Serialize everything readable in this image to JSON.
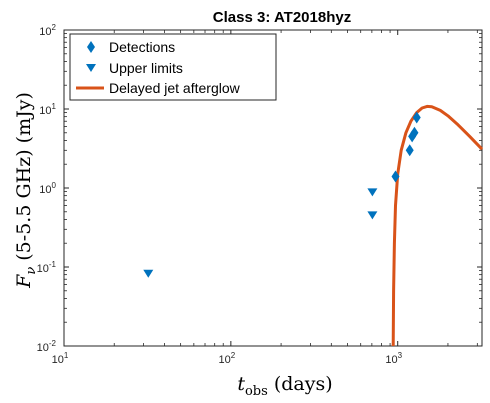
{
  "chart_data": {
    "type": "scatter",
    "title": "Class 3: AT2018hyz",
    "xlabel": "t_obs (days)",
    "ylabel": "F_ν (5-5.5 GHz) (mJy)",
    "xscale": "log",
    "yscale": "log",
    "xlim": [
      10,
      3200
    ],
    "ylim": [
      0.01,
      100
    ],
    "x_ticks": [
      10,
      100,
      1000
    ],
    "y_ticks": [
      0.01,
      0.1,
      1,
      10,
      100
    ],
    "legend_position": "top-left",
    "series": [
      {
        "name": "Detections",
        "marker": "diamond",
        "color": "#0072BD",
        "points": [
          {
            "x": 970,
            "y": 1.4
          },
          {
            "x": 1180,
            "y": 3.0
          },
          {
            "x": 1220,
            "y": 4.5
          },
          {
            "x": 1260,
            "y": 5.0
          },
          {
            "x": 1300,
            "y": 7.8
          }
        ]
      },
      {
        "name": "Upper limits",
        "marker": "triangle-down",
        "color": "#0072BD",
        "points": [
          {
            "x": 32,
            "y": 0.082
          },
          {
            "x": 705,
            "y": 0.88
          },
          {
            "x": 705,
            "y": 0.45
          }
        ]
      },
      {
        "name": "Delayed jet afterglow",
        "type": "line",
        "color": "#D95319",
        "points": [
          {
            "x": 940,
            "y": 0.01
          },
          {
            "x": 945,
            "y": 0.05
          },
          {
            "x": 955,
            "y": 0.2
          },
          {
            "x": 970,
            "y": 0.6
          },
          {
            "x": 1000,
            "y": 1.5
          },
          {
            "x": 1050,
            "y": 3.0
          },
          {
            "x": 1120,
            "y": 5.0
          },
          {
            "x": 1200,
            "y": 7.0
          },
          {
            "x": 1300,
            "y": 9.0
          },
          {
            "x": 1400,
            "y": 10.3
          },
          {
            "x": 1500,
            "y": 10.8
          },
          {
            "x": 1600,
            "y": 10.7
          },
          {
            "x": 1800,
            "y": 9.6
          },
          {
            "x": 2000,
            "y": 8.2
          },
          {
            "x": 2300,
            "y": 6.3
          },
          {
            "x": 2700,
            "y": 4.5
          },
          {
            "x": 3200,
            "y": 3.1
          }
        ]
      }
    ]
  }
}
